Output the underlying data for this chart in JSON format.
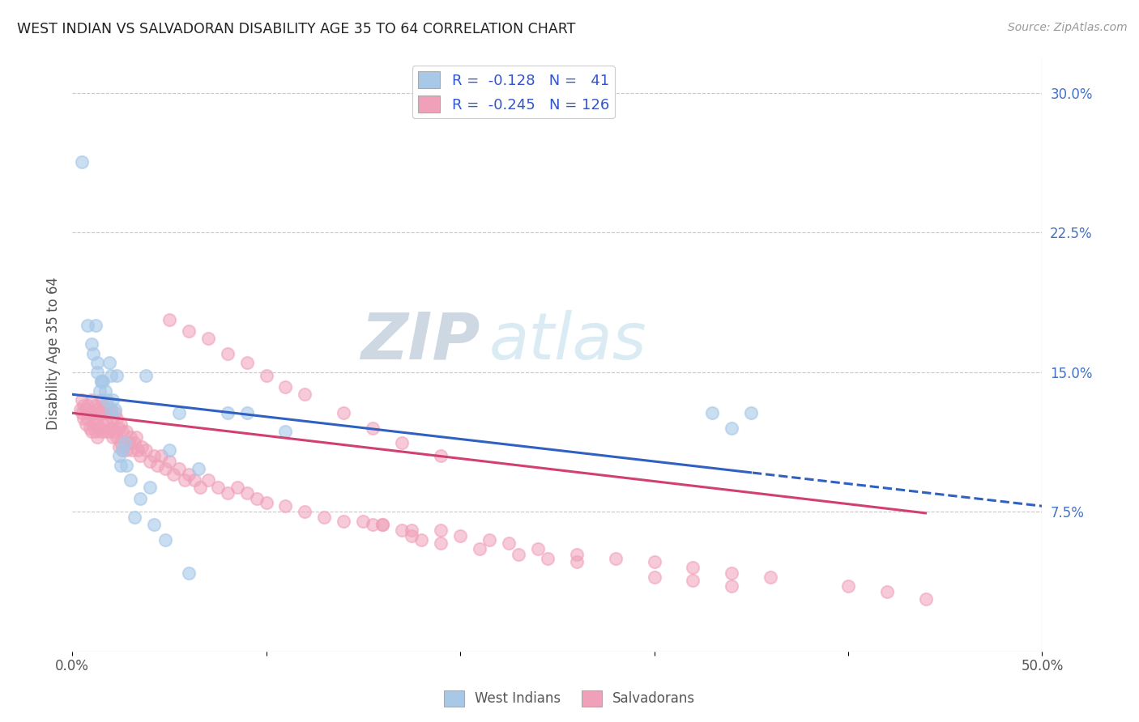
{
  "title": "WEST INDIAN VS SALVADORAN DISABILITY AGE 35 TO 64 CORRELATION CHART",
  "source": "Source: ZipAtlas.com",
  "ylabel": "Disability Age 35 to 64",
  "xlim": [
    0.0,
    0.5
  ],
  "ylim": [
    0.0,
    0.32
  ],
  "yticks_right": [
    0.075,
    0.15,
    0.225,
    0.3
  ],
  "yticklabels_right": [
    "7.5%",
    "15.0%",
    "22.5%",
    "30.0%"
  ],
  "blue_color": "#a8c8e8",
  "pink_color": "#f0a0b8",
  "trend_blue": "#3060c0",
  "trend_pink": "#d04070",
  "watermark_zip": "ZIP",
  "watermark_atlas": "atlas",
  "west_indians_x": [
    0.005,
    0.008,
    0.01,
    0.011,
    0.012,
    0.013,
    0.013,
    0.014,
    0.015,
    0.015,
    0.016,
    0.017,
    0.018,
    0.019,
    0.02,
    0.02,
    0.021,
    0.022,
    0.023,
    0.024,
    0.025,
    0.026,
    0.027,
    0.028,
    0.03,
    0.032,
    0.035,
    0.038,
    0.04,
    0.042,
    0.048,
    0.05,
    0.055,
    0.06,
    0.065,
    0.08,
    0.09,
    0.11,
    0.33,
    0.34,
    0.35
  ],
  "west_indians_y": [
    0.263,
    0.175,
    0.165,
    0.16,
    0.175,
    0.155,
    0.15,
    0.14,
    0.145,
    0.145,
    0.145,
    0.14,
    0.135,
    0.155,
    0.148,
    0.13,
    0.135,
    0.13,
    0.148,
    0.105,
    0.1,
    0.108,
    0.112,
    0.1,
    0.092,
    0.072,
    0.082,
    0.148,
    0.088,
    0.068,
    0.06,
    0.108,
    0.128,
    0.042,
    0.098,
    0.128,
    0.128,
    0.118,
    0.128,
    0.12,
    0.128
  ],
  "salvadorans_x": [
    0.004,
    0.005,
    0.005,
    0.006,
    0.006,
    0.007,
    0.007,
    0.008,
    0.008,
    0.009,
    0.009,
    0.01,
    0.01,
    0.01,
    0.011,
    0.011,
    0.012,
    0.012,
    0.012,
    0.013,
    0.013,
    0.013,
    0.014,
    0.014,
    0.015,
    0.015,
    0.015,
    0.016,
    0.016,
    0.017,
    0.017,
    0.018,
    0.018,
    0.019,
    0.019,
    0.02,
    0.02,
    0.021,
    0.021,
    0.022,
    0.022,
    0.023,
    0.023,
    0.024,
    0.024,
    0.025,
    0.025,
    0.026,
    0.026,
    0.027,
    0.028,
    0.028,
    0.029,
    0.03,
    0.031,
    0.032,
    0.033,
    0.034,
    0.035,
    0.036,
    0.038,
    0.04,
    0.042,
    0.044,
    0.046,
    0.048,
    0.05,
    0.052,
    0.055,
    0.058,
    0.06,
    0.063,
    0.066,
    0.07,
    0.075,
    0.08,
    0.085,
    0.09,
    0.095,
    0.1,
    0.11,
    0.12,
    0.13,
    0.14,
    0.155,
    0.16,
    0.175,
    0.19,
    0.2,
    0.215,
    0.225,
    0.24,
    0.26,
    0.28,
    0.3,
    0.32,
    0.34,
    0.36,
    0.4,
    0.42,
    0.44,
    0.175,
    0.19,
    0.21,
    0.23,
    0.245,
    0.26,
    0.15,
    0.16,
    0.17,
    0.18,
    0.3,
    0.32,
    0.34,
    0.05,
    0.06,
    0.07,
    0.08,
    0.09,
    0.1,
    0.11,
    0.12,
    0.14,
    0.155,
    0.17,
    0.19
  ],
  "salvadorans_y": [
    0.13,
    0.135,
    0.128,
    0.132,
    0.125,
    0.13,
    0.122,
    0.132,
    0.125,
    0.128,
    0.12,
    0.135,
    0.128,
    0.118,
    0.128,
    0.122,
    0.132,
    0.125,
    0.118,
    0.13,
    0.122,
    0.115,
    0.128,
    0.12,
    0.135,
    0.128,
    0.118,
    0.132,
    0.122,
    0.128,
    0.118,
    0.132,
    0.122,
    0.128,
    0.118,
    0.13,
    0.12,
    0.125,
    0.115,
    0.128,
    0.118,
    0.125,
    0.115,
    0.12,
    0.11,
    0.122,
    0.112,
    0.118,
    0.108,
    0.112,
    0.118,
    0.108,
    0.112,
    0.115,
    0.108,
    0.112,
    0.115,
    0.108,
    0.105,
    0.11,
    0.108,
    0.102,
    0.105,
    0.1,
    0.105,
    0.098,
    0.102,
    0.095,
    0.098,
    0.092,
    0.095,
    0.092,
    0.088,
    0.092,
    0.088,
    0.085,
    0.088,
    0.085,
    0.082,
    0.08,
    0.078,
    0.075,
    0.072,
    0.07,
    0.068,
    0.068,
    0.065,
    0.065,
    0.062,
    0.06,
    0.058,
    0.055,
    0.052,
    0.05,
    0.048,
    0.045,
    0.042,
    0.04,
    0.035,
    0.032,
    0.028,
    0.062,
    0.058,
    0.055,
    0.052,
    0.05,
    0.048,
    0.07,
    0.068,
    0.065,
    0.06,
    0.04,
    0.038,
    0.035,
    0.178,
    0.172,
    0.168,
    0.16,
    0.155,
    0.148,
    0.142,
    0.138,
    0.128,
    0.12,
    0.112,
    0.105
  ]
}
